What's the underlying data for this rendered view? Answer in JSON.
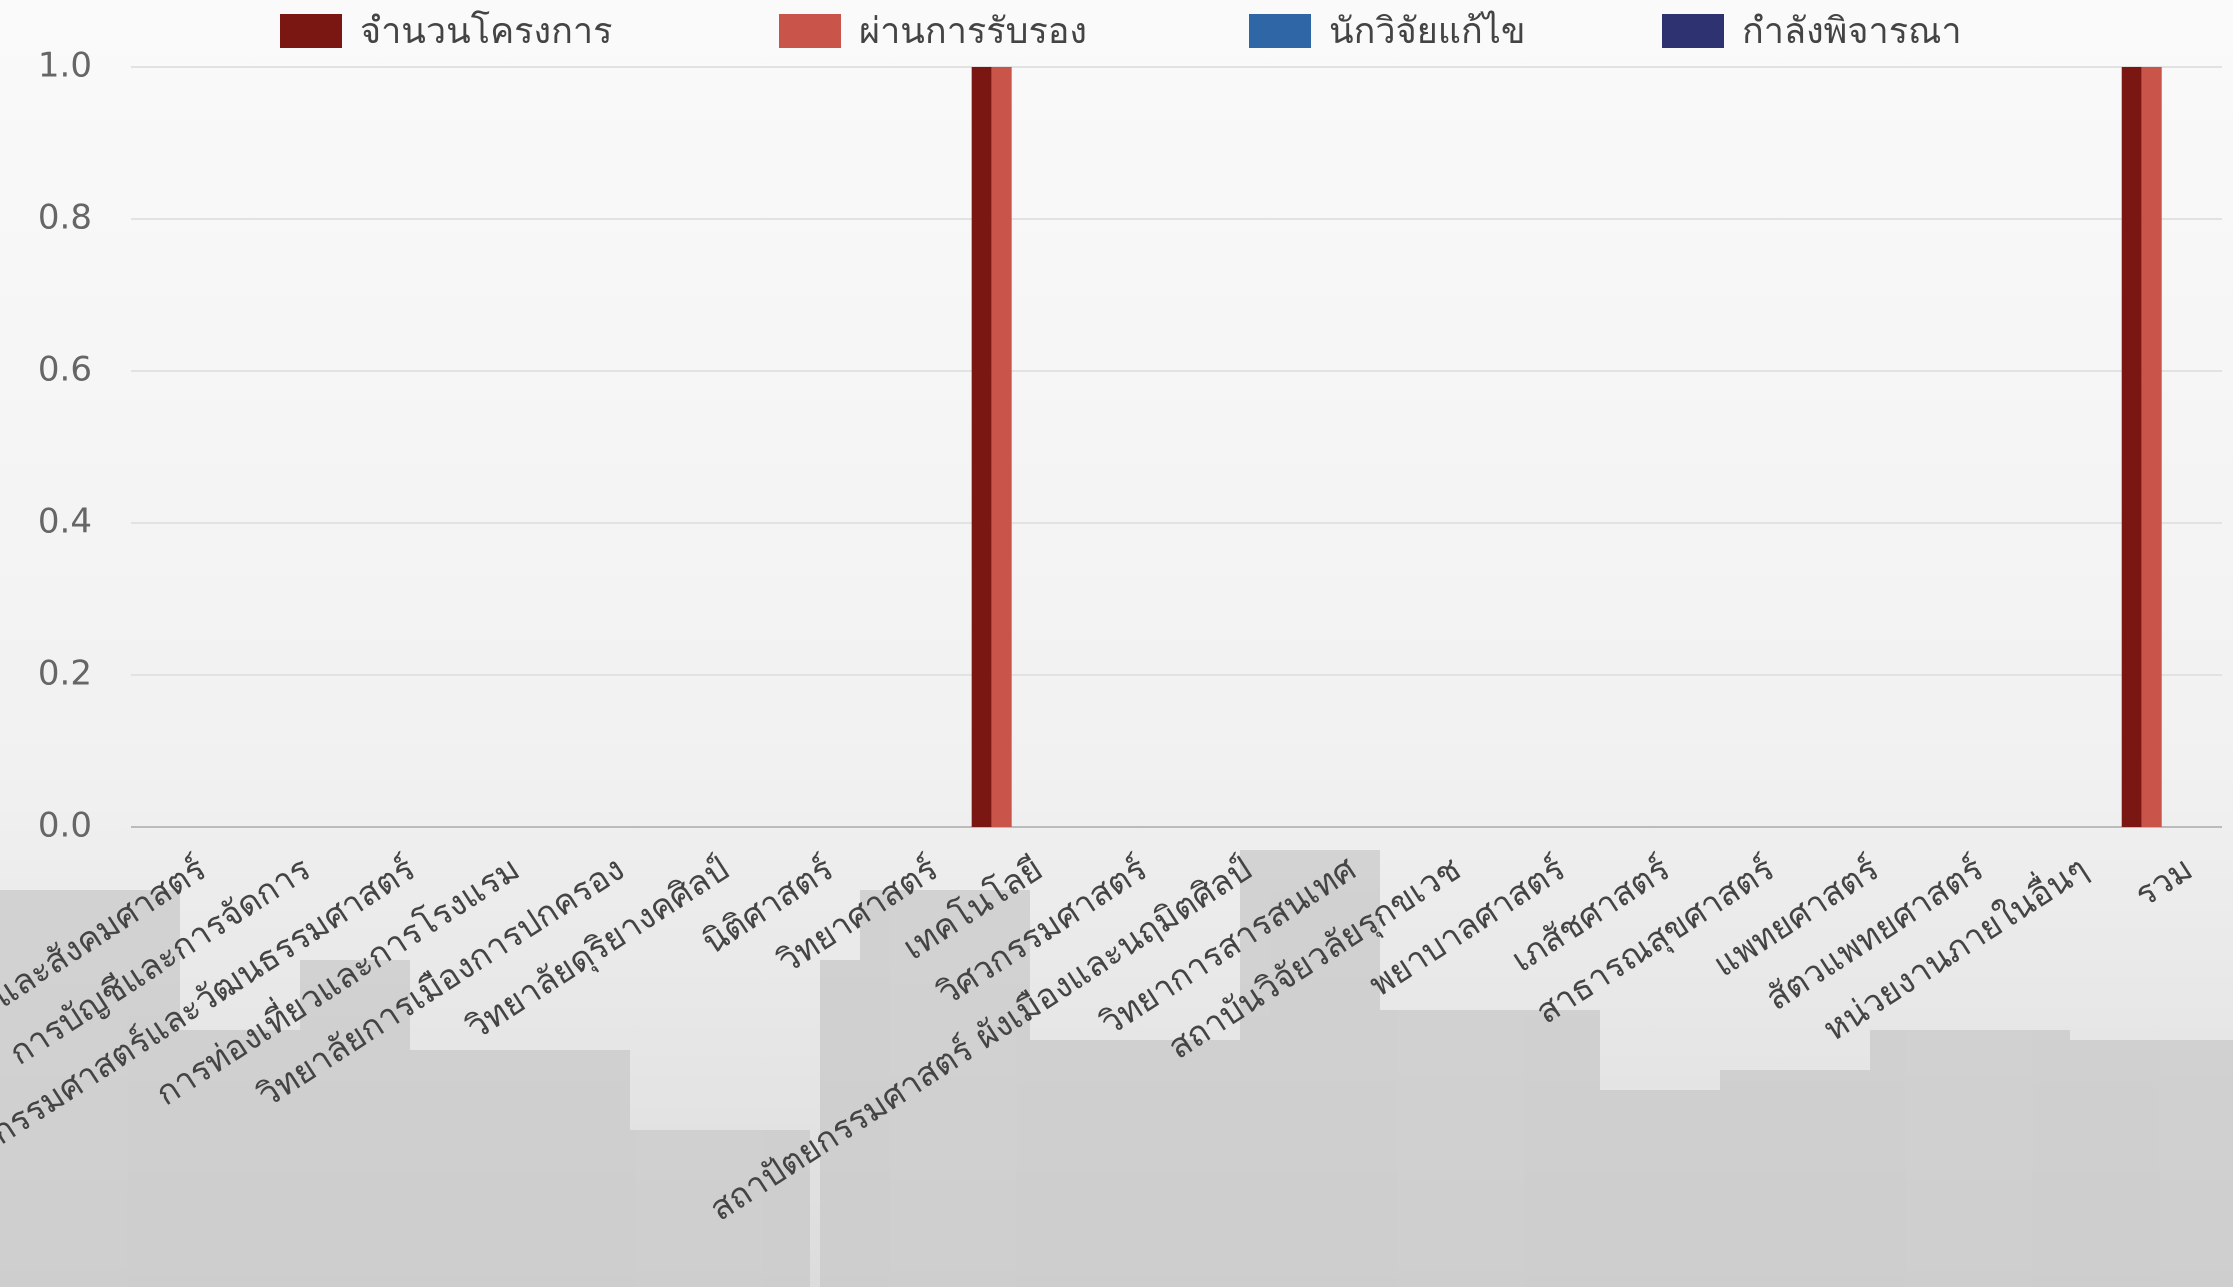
{
  "chart_data": {
    "type": "bar",
    "categories": [
      "มนุษยศาสตร์และสังคมศาสตร์",
      "การบัญชีและการจัดการ",
      "ศิลปกรรมศาสตร์และวัฒนธรรมศาสตร์",
      "การท่องเที่ยวและการโรงแรม",
      "วิทยาลัยการเมืองการปกครอง",
      "วิทยาลัยดุริยางคศิลป์",
      "นิติศาสตร์",
      "วิทยาศาสตร์",
      "เทคโนโลยี",
      "วิศวกรรมศาสตร์",
      "สถาปัตยกรรมศาสตร์ ผังเมืองและนฤมิตศิลป์",
      "วิทยาการสารสนเทศ",
      "สถาบันวิจัยวลัยรุกขเวช",
      "พยาบาลศาสตร์",
      "เภสัชศาสตร์",
      "สาธารณสุขศาสตร์",
      "แพทยศาสตร์",
      "สัตวแพทยศาสตร์",
      "หน่วยงานภายในอื่นๆ",
      "รวม"
    ],
    "series": [
      {
        "name": "จำนวนโครงการ",
        "color": "#7b1712",
        "values": [
          0,
          0,
          0,
          0,
          0,
          0,
          0,
          0,
          1,
          0,
          0,
          0,
          0,
          0,
          0,
          0,
          0,
          0,
          0,
          1
        ]
      },
      {
        "name": "ผ่านการรับรอง",
        "color": "#c9554a",
        "values": [
          0,
          0,
          0,
          0,
          0,
          0,
          0,
          0,
          1,
          0,
          0,
          0,
          0,
          0,
          0,
          0,
          0,
          0,
          0,
          1
        ]
      },
      {
        "name": "นักวิจัยแก้ไข",
        "color": "#2e66a6",
        "values": [
          0,
          0,
          0,
          0,
          0,
          0,
          0,
          0,
          0,
          0,
          0,
          0,
          0,
          0,
          0,
          0,
          0,
          0,
          0,
          0
        ]
      },
      {
        "name": "กำลังพิจารณา",
        "color": "#2e3270",
        "values": [
          0,
          0,
          0,
          0,
          0,
          0,
          0,
          0,
          0,
          0,
          0,
          0,
          0,
          0,
          0,
          0,
          0,
          0,
          0,
          0
        ]
      }
    ],
    "ylim": [
      0,
      1
    ],
    "yticks": [
      {
        "value": 0,
        "label": "0.0"
      },
      {
        "value": 0.2,
        "label": "0.2"
      },
      {
        "value": 0.4,
        "label": "0.4"
      },
      {
        "value": 0.6,
        "label": "0.6"
      },
      {
        "value": 0.8,
        "label": "0.8"
      },
      {
        "value": 1,
        "label": "1.0"
      }
    ],
    "grid": true
  }
}
